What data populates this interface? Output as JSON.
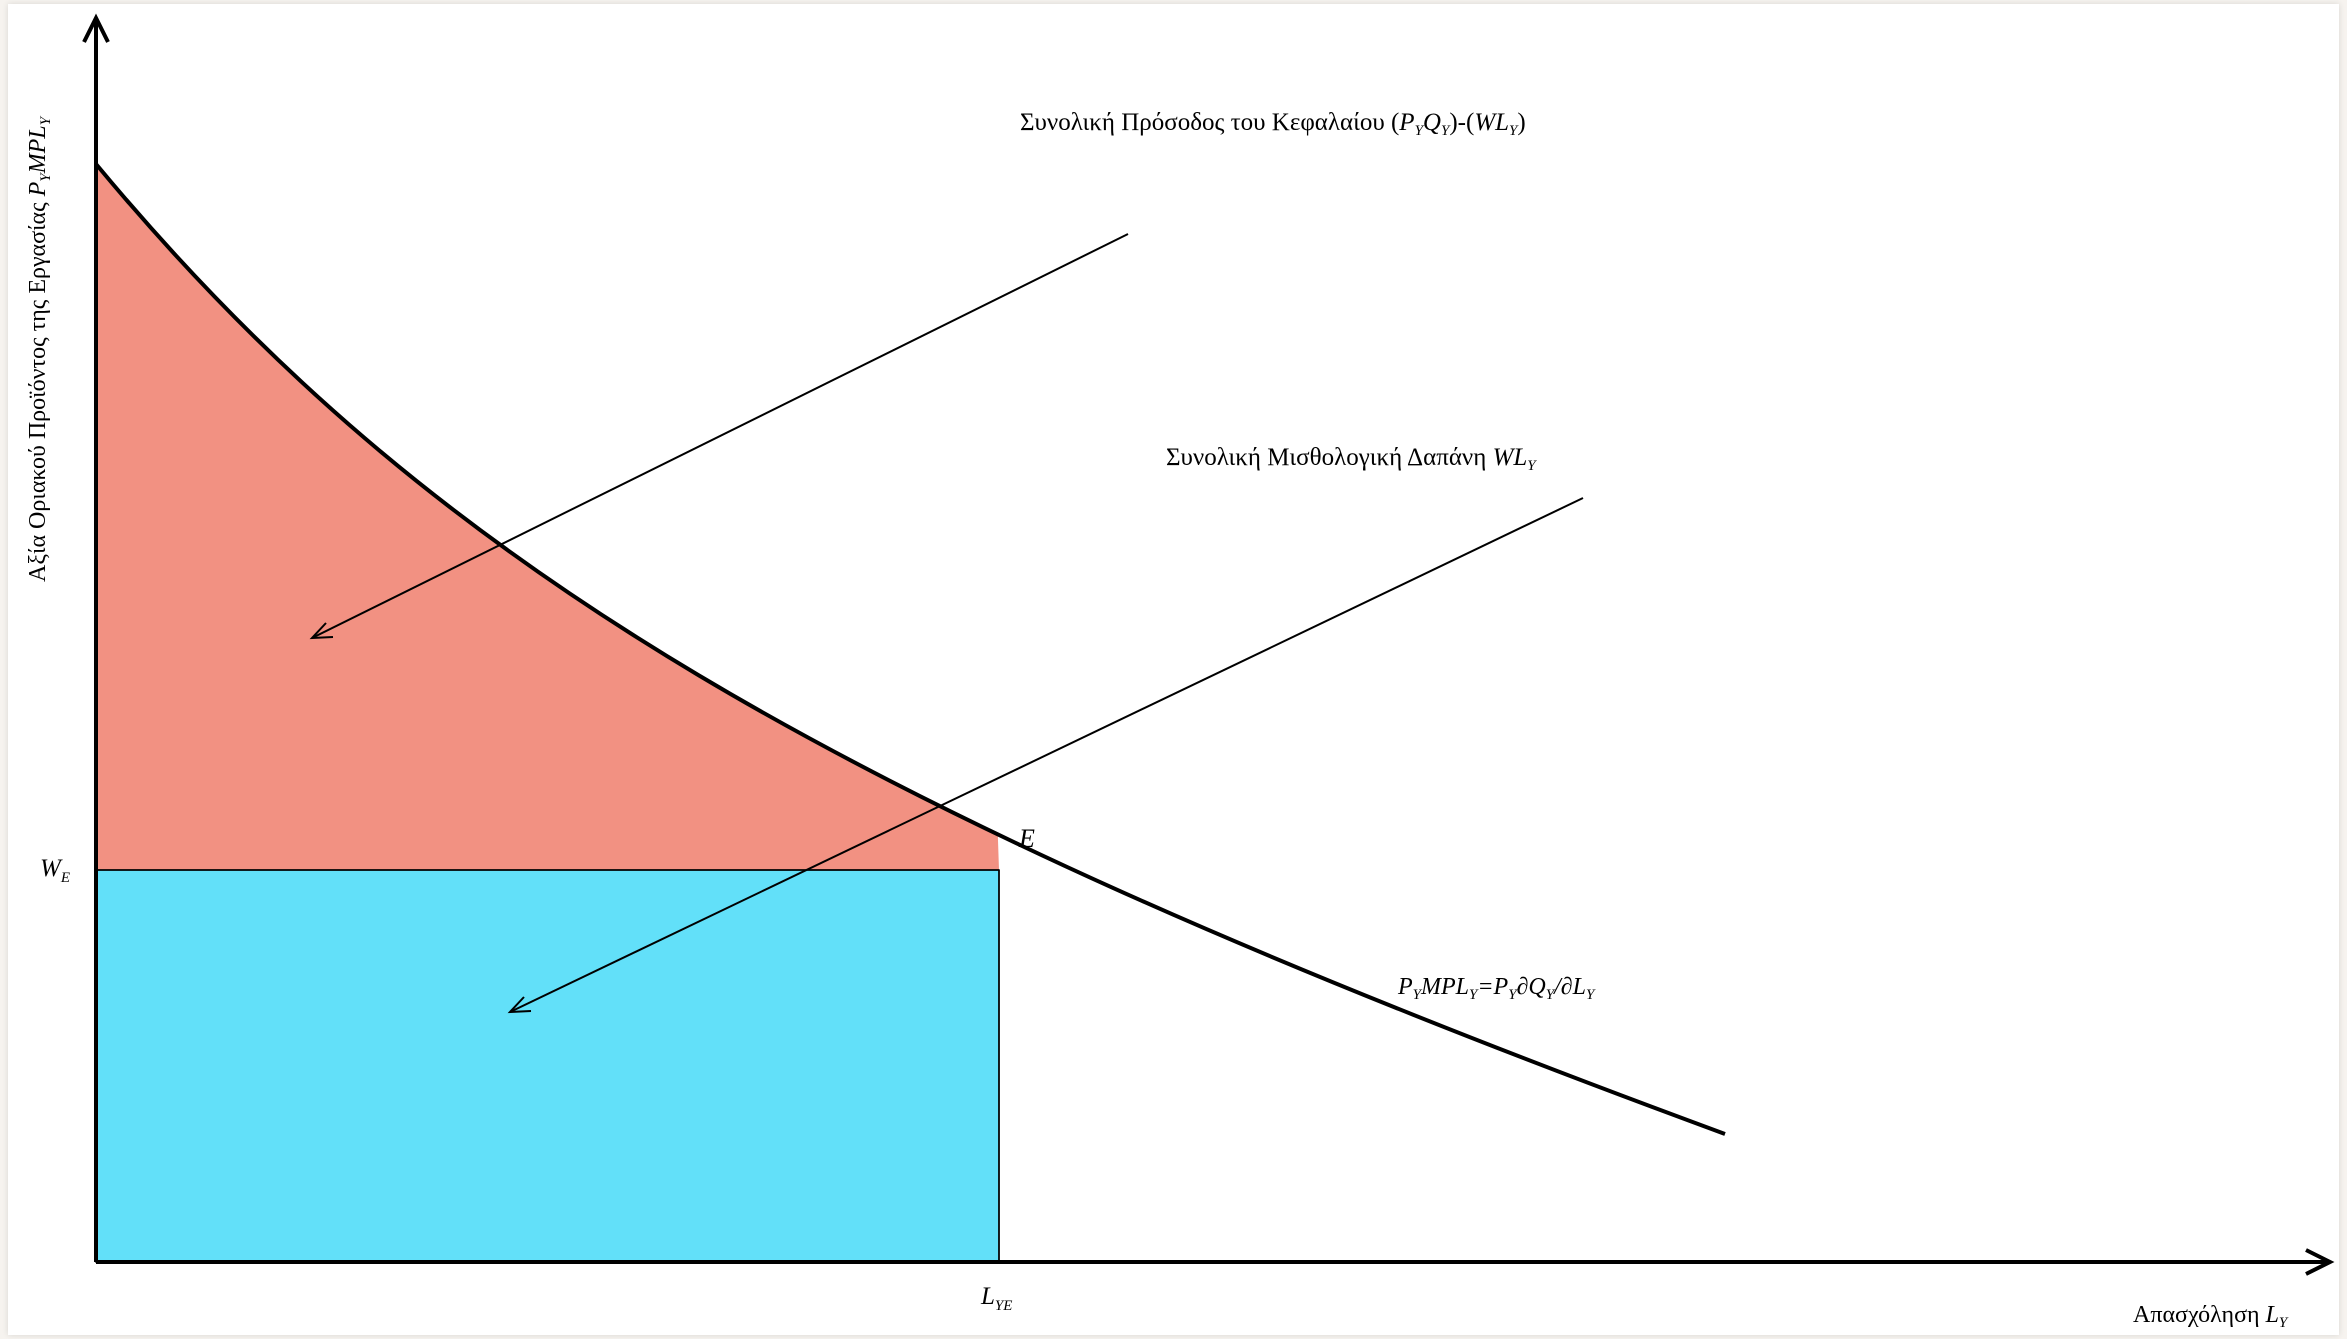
{
  "axes": {
    "y_label": {
      "prefix": "Αξία Οριακού Προϊόντος της Εργασίας ",
      "sym": "P",
      "sub1": "Y",
      "sym2": "MPL",
      "sub2": "Y"
    },
    "x_label": {
      "prefix": "Απασχόληση ",
      "sym": "L",
      "sub": "Y"
    },
    "y_tick": {
      "sym": "W",
      "sub": "E"
    },
    "x_tick": {
      "sym": "L",
      "sub": "YE"
    }
  },
  "point_label": "E",
  "curve_label": {
    "a": "P",
    "a_sub": "Y",
    "b": "MPL",
    "b_sub": "Y",
    "c": "=P",
    "c_sub": "Y",
    "d": "∂Q",
    "d_sub": "Y",
    "e": "/∂L",
    "e_sub": "Y"
  },
  "capital_label": {
    "text": "Συνολική Πρόσοδος του Κεφαλαίου (",
    "p": "P",
    "p_sub": "Y",
    "q": "Q",
    "q_sub": "Y",
    "mid": ")-(",
    "wl": "WL",
    "wl_sub": "Y",
    "end": ")"
  },
  "wage_label": {
    "text": "Συνολική Μισθολογική Δαπάνη ",
    "wl": "WL",
    "wl_sub": "Y"
  },
  "colors": {
    "capital_area": "#f29182",
    "wage_area": "#62e0f9",
    "curve": "#000000",
    "axes": "#000000"
  }
}
